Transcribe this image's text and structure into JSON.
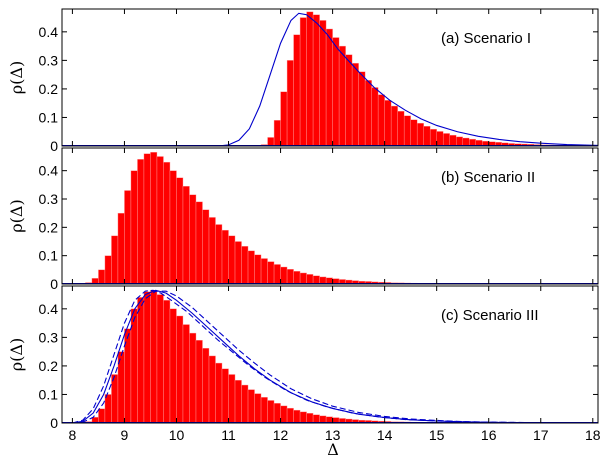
{
  "chart_data": {
    "type": "histogram",
    "xlabel": "Δ",
    "ylabel": "ρ(Δ)",
    "xlim": [
      7.8,
      18.1
    ],
    "ylim": [
      0,
      0.48
    ],
    "bin_width": 0.125,
    "x_ticks": [
      8,
      9,
      10,
      11,
      12,
      13,
      14,
      15,
      16,
      17,
      18
    ],
    "y_ticks": [
      0,
      0.1,
      0.2,
      0.3,
      0.4
    ],
    "bar_color": "#ff0000",
    "curve_color": "#0000cc",
    "grid": false,
    "panels": [
      {
        "label": "(a) Scenario I",
        "mode": 12.6,
        "peak": 0.47,
        "sigma_left": 0.45,
        "sigma_right": 1.05,
        "onset": 11.75,
        "histogram": {
          "bin_centers": [
            11.6875,
            11.8125,
            11.9375,
            12.0625,
            12.1875,
            12.3125,
            12.4375,
            12.5625,
            12.6875,
            12.8125,
            12.9375,
            13.0625,
            13.1875,
            13.3125,
            13.4375,
            13.5625,
            13.6875,
            13.8125,
            13.9375,
            14.0625,
            14.1875,
            14.3125,
            14.4375,
            14.5625,
            14.6875,
            14.8125,
            14.9375,
            15.0625,
            15.1875,
            15.3125,
            15.4375,
            15.5625,
            15.6875,
            15.8125,
            15.9375,
            16.0625,
            16.1875,
            16.3125,
            16.4375,
            16.5625,
            16.6875,
            16.8125,
            16.9375,
            17.0625,
            17.1875,
            17.3125,
            17.4375,
            17.5625,
            17.6875,
            17.8125,
            17.9375
          ],
          "values": [
            0.005,
            0.03,
            0.09,
            0.19,
            0.3,
            0.39,
            0.45,
            0.47,
            0.46,
            0.44,
            0.41,
            0.38,
            0.35,
            0.32,
            0.29,
            0.26,
            0.23,
            0.205,
            0.18,
            0.16,
            0.14,
            0.122,
            0.106,
            0.092,
            0.08,
            0.069,
            0.059,
            0.051,
            0.044,
            0.038,
            0.032,
            0.028,
            0.024,
            0.02,
            0.017,
            0.015,
            0.013,
            0.011,
            0.009,
            0.008,
            0.007,
            0.006,
            0.005,
            0.004,
            0.0035,
            0.003,
            0.0025,
            0.002,
            0.0015,
            0.001,
            0.001
          ]
        },
        "curves": [
          {
            "style": "solid",
            "x": [
              7.8,
              10.8,
              11.0,
              11.2,
              11.4,
              11.6,
              11.8,
              12.0,
              12.2,
              12.35,
              12.5,
              12.7,
              12.9,
              13.1,
              13.3,
              13.5,
              13.8,
              14.1,
              14.4,
              14.7,
              15.0,
              15.4,
              15.8,
              16.2,
              16.6,
              17.0,
              17.5,
              18.1
            ],
            "y": [
              0,
              0,
              0.004,
              0.02,
              0.06,
              0.14,
              0.25,
              0.36,
              0.44,
              0.465,
              0.46,
              0.43,
              0.39,
              0.34,
              0.3,
              0.26,
              0.205,
              0.16,
              0.125,
              0.095,
              0.072,
              0.05,
              0.034,
              0.023,
              0.015,
              0.01,
              0.005,
              0.002
            ]
          }
        ]
      },
      {
        "label": "(b) Scenario II",
        "mode": 9.65,
        "peak": 0.465,
        "sigma_left": 0.45,
        "sigma_right": 1.05,
        "onset": 8.3,
        "histogram": {
          "bin_centers": [
            8.3125,
            8.4375,
            8.5625,
            8.6875,
            8.8125,
            8.9375,
            9.0625,
            9.1875,
            9.3125,
            9.4375,
            9.5625,
            9.6875,
            9.8125,
            9.9375,
            10.0625,
            10.1875,
            10.3125,
            10.4375,
            10.5625,
            10.6875,
            10.8125,
            10.9375,
            11.0625,
            11.1875,
            11.3125,
            11.4375,
            11.5625,
            11.6875,
            11.8125,
            11.9375,
            12.0625,
            12.1875,
            12.3125,
            12.4375,
            12.5625,
            12.6875,
            12.8125,
            12.9375,
            13.0625,
            13.1875,
            13.3125,
            13.4375,
            13.5625,
            13.6875,
            13.8125,
            13.9375,
            14.0625,
            14.1875,
            14.3125,
            14.4375,
            14.5625,
            14.6875,
            14.8125,
            14.9375,
            15.0625
          ],
          "values": [
            0.005,
            0.02,
            0.05,
            0.1,
            0.17,
            0.25,
            0.33,
            0.4,
            0.44,
            0.46,
            0.465,
            0.45,
            0.43,
            0.4,
            0.375,
            0.345,
            0.315,
            0.29,
            0.262,
            0.235,
            0.21,
            0.19,
            0.17,
            0.15,
            0.133,
            0.117,
            0.103,
            0.09,
            0.079,
            0.069,
            0.06,
            0.052,
            0.045,
            0.039,
            0.034,
            0.029,
            0.025,
            0.022,
            0.019,
            0.016,
            0.014,
            0.012,
            0.01,
            0.009,
            0.0075,
            0.0065,
            0.0055,
            0.0045,
            0.004,
            0.0035,
            0.003,
            0.0025,
            0.002,
            0.0015,
            0.001
          ]
        },
        "curves": []
      },
      {
        "label": "(c) Scenario III",
        "mode": 9.65,
        "peak": 0.465,
        "sigma_left": 0.45,
        "sigma_right": 1.05,
        "onset": 8.3,
        "histogram": {
          "bin_centers": [
            8.3125,
            8.4375,
            8.5625,
            8.6875,
            8.8125,
            8.9375,
            9.0625,
            9.1875,
            9.3125,
            9.4375,
            9.5625,
            9.6875,
            9.8125,
            9.9375,
            10.0625,
            10.1875,
            10.3125,
            10.4375,
            10.5625,
            10.6875,
            10.8125,
            10.9375,
            11.0625,
            11.1875,
            11.3125,
            11.4375,
            11.5625,
            11.6875,
            11.8125,
            11.9375,
            12.0625,
            12.1875,
            12.3125,
            12.4375,
            12.5625,
            12.6875,
            12.8125,
            12.9375,
            13.0625,
            13.1875,
            13.3125,
            13.4375,
            13.5625,
            13.6875,
            13.8125,
            13.9375,
            14.0625,
            14.1875,
            14.3125,
            14.4375,
            14.5625,
            14.6875,
            14.8125,
            14.9375,
            15.0625
          ],
          "values": [
            0.005,
            0.02,
            0.05,
            0.1,
            0.17,
            0.25,
            0.33,
            0.4,
            0.44,
            0.46,
            0.465,
            0.45,
            0.43,
            0.4,
            0.375,
            0.345,
            0.315,
            0.29,
            0.262,
            0.235,
            0.21,
            0.19,
            0.17,
            0.15,
            0.133,
            0.117,
            0.103,
            0.09,
            0.079,
            0.069,
            0.06,
            0.052,
            0.045,
            0.039,
            0.034,
            0.029,
            0.025,
            0.022,
            0.019,
            0.016,
            0.014,
            0.012,
            0.01,
            0.009,
            0.0075,
            0.0065,
            0.0055,
            0.0045,
            0.004,
            0.0035,
            0.003,
            0.0025,
            0.002,
            0.0015,
            0.001
          ]
        },
        "curves": [
          {
            "style": "solid",
            "x": [
              8.0,
              8.2,
              8.4,
              8.6,
              8.8,
              9.0,
              9.2,
              9.4,
              9.6,
              9.8,
              10.0,
              10.3,
              10.6,
              10.9,
              11.2,
              11.5,
              11.8,
              12.2,
              12.6,
              13.0,
              13.5,
              14.0,
              14.5,
              15.0,
              15.5,
              16.0,
              16.5,
              17.0,
              17.5,
              18.1
            ],
            "y": [
              0,
              0.006,
              0.035,
              0.1,
              0.2,
              0.31,
              0.4,
              0.45,
              0.465,
              0.455,
              0.43,
              0.385,
              0.335,
              0.285,
              0.235,
              0.19,
              0.15,
              0.106,
              0.074,
              0.051,
              0.031,
              0.019,
              0.011,
              0.007,
              0.004,
              0.0025,
              0.0015,
              0.001,
              0.0005,
              0.0002
            ]
          },
          {
            "style": "dashed",
            "x": [
              8.0,
              8.2,
              8.4,
              8.6,
              8.8,
              9.0,
              9.2,
              9.4,
              9.55,
              9.7,
              9.9,
              10.2,
              10.5,
              10.8,
              11.1,
              11.4,
              11.7,
              12.1,
              12.5,
              12.9,
              13.4,
              13.9,
              14.4,
              14.9,
              15.4,
              15.9,
              16.4,
              16.9,
              17.4,
              18.1
            ],
            "y": [
              0,
              0.01,
              0.05,
              0.13,
              0.24,
              0.35,
              0.43,
              0.462,
              0.465,
              0.455,
              0.43,
              0.39,
              0.34,
              0.29,
              0.245,
              0.2,
              0.16,
              0.115,
              0.08,
              0.056,
              0.034,
              0.021,
              0.012,
              0.008,
              0.005,
              0.003,
              0.002,
              0.001,
              0.0006,
              0.0002
            ]
          },
          {
            "style": "dashed",
            "x": [
              8.0,
              8.2,
              8.4,
              8.6,
              8.8,
              9.0,
              9.2,
              9.4,
              9.6,
              9.8,
              10.0,
              10.3,
              10.6,
              10.9,
              11.2,
              11.5,
              11.8,
              12.2,
              12.6,
              13.0,
              13.5,
              14.0,
              14.5,
              15.0,
              15.5,
              16.0,
              16.5,
              17.0,
              17.5,
              18.1
            ],
            "y": [
              0,
              0.003,
              0.02,
              0.07,
              0.16,
              0.27,
              0.37,
              0.435,
              0.462,
              0.462,
              0.445,
              0.405,
              0.355,
              0.305,
              0.255,
              0.21,
              0.168,
              0.12,
              0.085,
              0.059,
              0.037,
              0.023,
              0.014,
              0.009,
              0.005,
              0.003,
              0.002,
              0.0012,
              0.0006,
              0.0002
            ]
          }
        ]
      }
    ]
  }
}
